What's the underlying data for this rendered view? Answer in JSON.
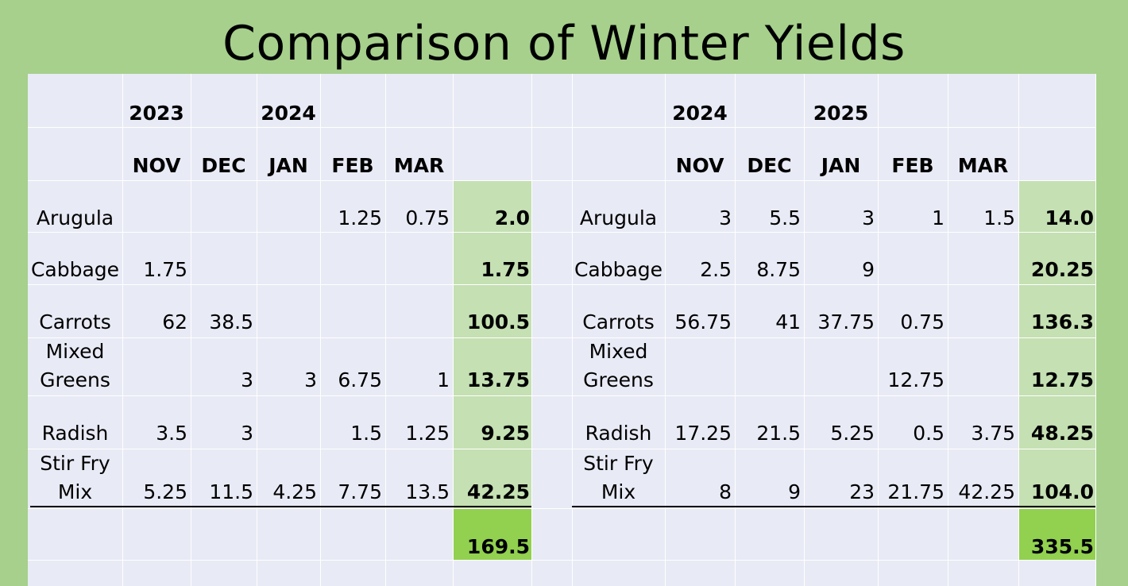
{
  "title": "Comparison of Winter Yields",
  "tables": [
    {
      "years": [
        "2023",
        "2024"
      ],
      "months": [
        "NOV",
        "DEC",
        "JAN",
        "FEB",
        "MAR"
      ],
      "rows": [
        {
          "crop": [
            "Arugula"
          ],
          "values": [
            "",
            "",
            "",
            "1.25",
            "0.75"
          ],
          "total": "2.0"
        },
        {
          "crop": [
            "Cabbage"
          ],
          "values": [
            "1.75",
            "",
            "",
            "",
            ""
          ],
          "total": "1.75"
        },
        {
          "crop": [
            "Carrots"
          ],
          "values": [
            "62",
            "38.5",
            "",
            "",
            ""
          ],
          "total": "100.5"
        },
        {
          "crop": [
            "Mixed",
            "Greens"
          ],
          "values": [
            "",
            "3",
            "3",
            "6.75",
            "1"
          ],
          "total": "13.75"
        },
        {
          "crop": [
            "Radish"
          ],
          "values": [
            "3.5",
            "3",
            "",
            "1.5",
            "1.25"
          ],
          "total": "9.25"
        },
        {
          "crop": [
            "Stir Fry",
            "Mix"
          ],
          "values": [
            "5.25",
            "11.5",
            "4.25",
            "7.75",
            "13.5"
          ],
          "total": "42.25"
        }
      ],
      "grand_total": "169.5"
    },
    {
      "years": [
        "2024",
        "2025"
      ],
      "months": [
        "NOV",
        "DEC",
        "JAN",
        "FEB",
        "MAR"
      ],
      "rows": [
        {
          "crop": [
            "Arugula"
          ],
          "values": [
            "3",
            "5.5",
            "3",
            "1",
            "1.5"
          ],
          "total": "14.0"
        },
        {
          "crop": [
            "Cabbage"
          ],
          "values": [
            "2.5",
            "8.75",
            "9",
            "",
            ""
          ],
          "total": "20.25"
        },
        {
          "crop": [
            "Carrots"
          ],
          "values": [
            "56.75",
            "41",
            "37.75",
            "0.75",
            ""
          ],
          "total": "136.3"
        },
        {
          "crop": [
            "Mixed",
            "Greens"
          ],
          "values": [
            "",
            "",
            "",
            "12.75",
            ""
          ],
          "total": "12.75"
        },
        {
          "crop": [
            "Radish"
          ],
          "values": [
            "17.25",
            "21.5",
            "5.25",
            "0.5",
            "3.75"
          ],
          "total": "48.25"
        },
        {
          "crop": [
            "Stir Fry",
            "Mix"
          ],
          "values": [
            "8",
            "9",
            "23",
            "21.75",
            "42.25"
          ],
          "total": "104.0"
        }
      ],
      "grand_total": "335.5"
    }
  ],
  "colors": {
    "background": "#a6d08c",
    "sheet": "#e8eaf5",
    "total_column": "#c5e0b3",
    "grand_total": "#92d050"
  }
}
